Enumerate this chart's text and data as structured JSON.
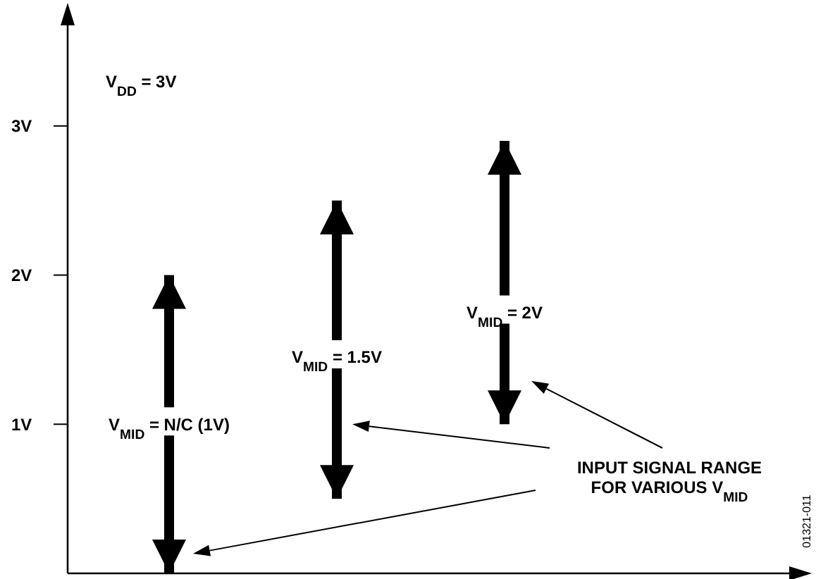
{
  "chart_data": {
    "type": "bar",
    "categories": [
      null,
      null,
      null
    ],
    "series": [
      {
        "color": "#000000",
        "values": [
          2,
          2,
          1.9
        ],
        "base": [
          0,
          0.5,
          1
        ]
      }
    ],
    "ylim": [
      0,
      3.75
    ],
    "yticks": [
      {
        "value": 1,
        "label": "1V"
      },
      {
        "value": 2,
        "label": "2V"
      },
      {
        "value": 3,
        "label": "3V"
      }
    ],
    "tick_labels": "y",
    "grid": false,
    "annotations": [
      "V$_{DD}$ = 3V",
      {
        "text": "V$_{MID}$ = N/C (1V)",
        "y": 1
      },
      {
        "text": "V$_{MID}$ = 1.5V",
        "y": 1.45
      },
      {
        "text": "V$_{MID}$ = 2V",
        "y": 1.75
      },
      "INPUT SIGNAL RANGE\nFOR VARIOUS V$_{MID}$",
      "01321-011"
    ]
  }
}
